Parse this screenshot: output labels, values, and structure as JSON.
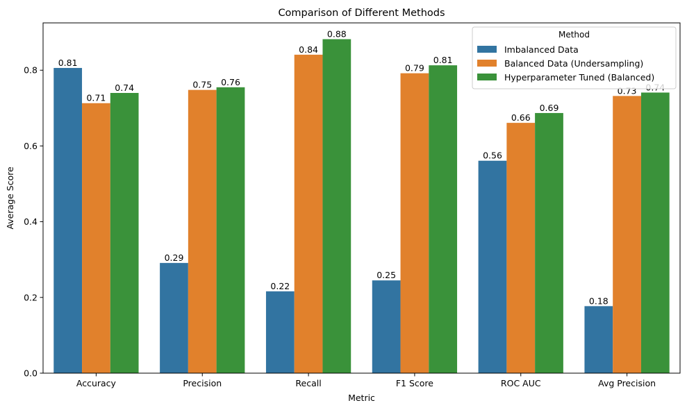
{
  "chart_data": {
    "type": "bar",
    "title": "Comparison of Different Methods",
    "xlabel": "Metric",
    "ylabel": "Average Score",
    "ylim": [
      0,
      0.925
    ],
    "yticks": [
      0.0,
      0.2,
      0.4,
      0.6,
      0.8
    ],
    "ytick_labels": [
      "0.0",
      "0.2",
      "0.4",
      "0.6",
      "0.8"
    ],
    "grid": false,
    "legend": {
      "title": "Method",
      "placement": "top-right"
    },
    "categories": [
      "Accuracy",
      "Precision",
      "Recall",
      "F1 Score",
      "ROC AUC",
      "Avg Precision"
    ],
    "series": [
      {
        "name": "Imbalanced Data",
        "color": "#3274a1",
        "values": [
          0.806,
          0.291,
          0.216,
          0.245,
          0.561,
          0.177
        ],
        "labels": [
          "0.81",
          "0.29",
          "0.22",
          "0.25",
          "0.56",
          "0.18"
        ]
      },
      {
        "name": "Balanced Data (Undersampling)",
        "color": "#e1812c",
        "values": [
          0.713,
          0.748,
          0.841,
          0.792,
          0.661,
          0.732
        ],
        "labels": [
          "0.71",
          "0.75",
          "0.84",
          "0.79",
          "0.66",
          "0.73"
        ]
      },
      {
        "name": "Hyperparameter Tuned (Balanced)",
        "color": "#3a923a",
        "values": [
          0.74,
          0.755,
          0.882,
          0.813,
          0.687,
          0.741
        ],
        "labels": [
          "0.74",
          "0.76",
          "0.88",
          "0.81",
          "0.69",
          "0.74"
        ]
      }
    ]
  }
}
